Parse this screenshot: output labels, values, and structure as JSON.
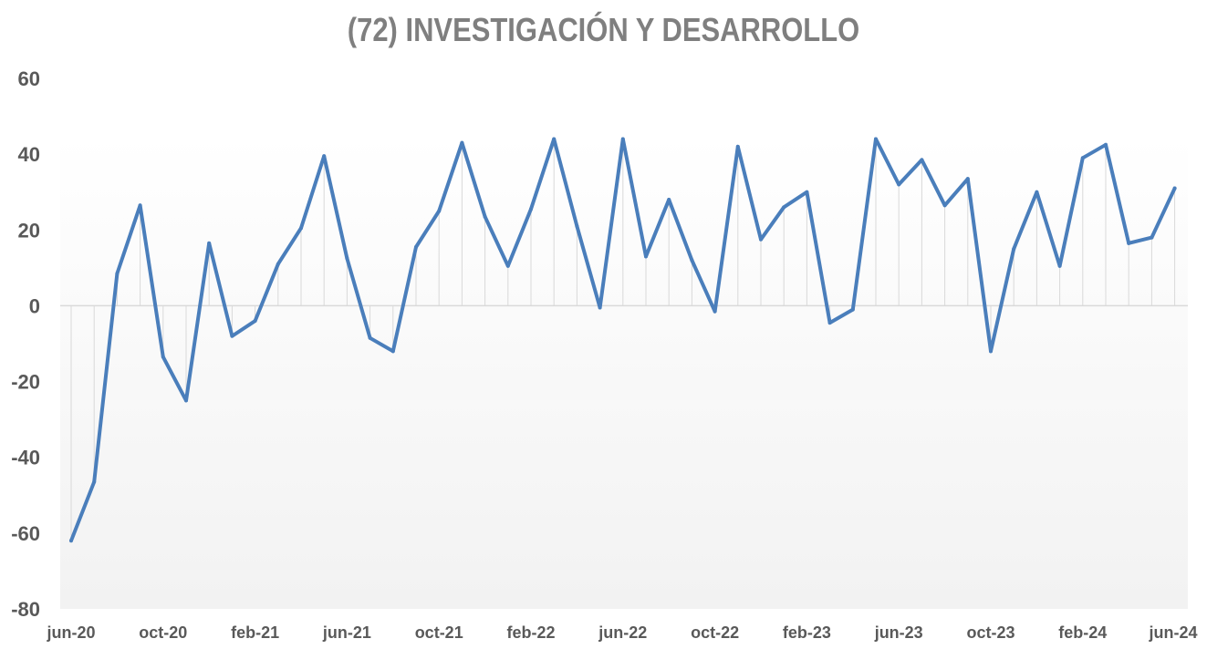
{
  "chart_data": {
    "type": "line",
    "title": "(72) INVESTIGACIÓN Y DESARROLLO",
    "xlabel": "",
    "ylabel": "",
    "ylim": [
      -80,
      60
    ],
    "yticks": [
      "60",
      "40",
      "20",
      "0",
      "-20",
      "-40",
      "-60",
      "-80"
    ],
    "xtick_labels": [
      "jun-20",
      "oct-20",
      "feb-21",
      "jun-21",
      "oct-21",
      "feb-22",
      "jun-22",
      "oct-22",
      "feb-23",
      "jun-23",
      "oct-23",
      "feb-24",
      "jun-24"
    ],
    "x": [
      "jun-20",
      "jul-20",
      "ago-20",
      "sep-20",
      "oct-20",
      "nov-20",
      "dic-20",
      "ene-21",
      "feb-21",
      "mar-21",
      "abr-21",
      "may-21",
      "jun-21",
      "jul-21",
      "ago-21",
      "sep-21",
      "oct-21",
      "nov-21",
      "dic-21",
      "ene-22",
      "feb-22",
      "mar-22",
      "abr-22",
      "may-22",
      "jun-22",
      "jul-22",
      "ago-22",
      "sep-22",
      "oct-22",
      "nov-22",
      "dic-22",
      "ene-23",
      "feb-23",
      "mar-23",
      "abr-23",
      "may-23",
      "jun-23",
      "jul-23",
      "ago-23",
      "sep-23",
      "oct-23",
      "nov-23",
      "dic-23",
      "ene-24",
      "feb-24",
      "mar-24",
      "abr-24",
      "may-24",
      "jun-24"
    ],
    "series": [
      {
        "values": [
          -62,
          -46.5,
          8.5,
          26.5,
          -13.5,
          -25,
          16.5,
          -8,
          -4,
          11,
          20.5,
          39.5,
          12.5,
          -8.5,
          -12,
          15.5,
          25,
          43,
          23.5,
          10.5,
          25.5,
          44,
          21,
          -0.5,
          44,
          13,
          28,
          12,
          -1.5,
          42,
          17.5,
          26,
          30,
          -4.5,
          -1,
          44,
          32,
          38.5,
          26.5,
          33.5,
          -12,
          15,
          30,
          10.5,
          39,
          42.5,
          16.5,
          18,
          31
        ]
      }
    ],
    "colors": {
      "line": "#4a7ebb",
      "title": "#7f7f7f",
      "tick_labels": "#595959",
      "zero_axis": "#d9d9d9",
      "drop_lines": "#d9d9d9",
      "plot_background_top": "#ffffff",
      "plot_background_bottom": "#f2f2f2"
    },
    "grid": false,
    "drop_lines": true,
    "legend": "none"
  }
}
